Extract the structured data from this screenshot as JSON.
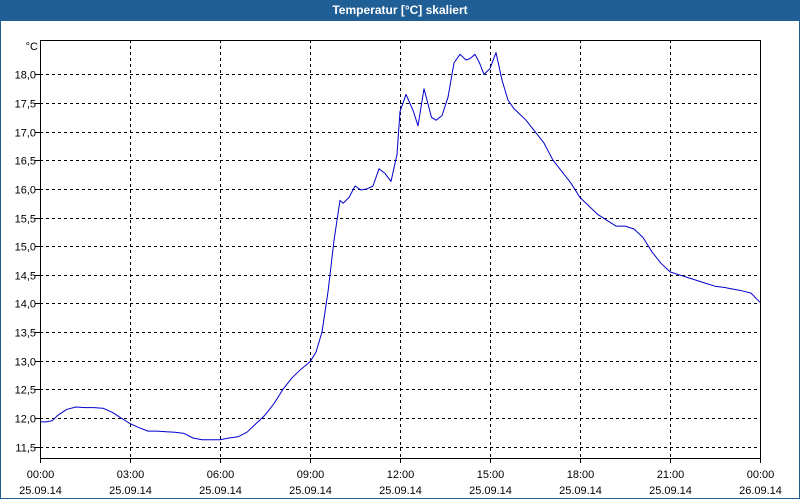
{
  "window": {
    "title": "Temperatur [°C] skaliert"
  },
  "colors": {
    "titlebar": "#1f5f95",
    "line": "#0000cc",
    "grid": "#000000",
    "background": "#ffffff"
  },
  "chart_data": {
    "type": "line",
    "title": "Temperatur [°C] skaliert",
    "unit_label": "°C",
    "xlabel": "",
    "ylabel": "",
    "grid": true,
    "legend": "none",
    "ylim": [
      11.3,
      18.6
    ],
    "xlim_hours": [
      0,
      24
    ],
    "y_ticks": [
      "11,5",
      "12,0",
      "12,5",
      "13,0",
      "13,5",
      "14,0",
      "14,5",
      "15,0",
      "15,5",
      "16,0",
      "16,5",
      "17,0",
      "17,5",
      "18,0"
    ],
    "x_ticks": [
      {
        "time": "00:00",
        "date": "25.09.14"
      },
      {
        "time": "03:00",
        "date": "25.09.14"
      },
      {
        "time": "06:00",
        "date": "25.09.14"
      },
      {
        "time": "09:00",
        "date": "25.09.14"
      },
      {
        "time": "12:00",
        "date": "25.09.14"
      },
      {
        "time": "15:00",
        "date": "25.09.14"
      },
      {
        "time": "18:00",
        "date": "25.09.14"
      },
      {
        "time": "21:00",
        "date": "25.09.14"
      },
      {
        "time": "00:00",
        "date": "26.09.14"
      }
    ],
    "series": [
      {
        "x": [
          0.0,
          0.2,
          0.4,
          0.6,
          0.9,
          1.2,
          1.5,
          1.8,
          2.1,
          2.4,
          2.7,
          3.0,
          3.3,
          3.6,
          3.9,
          4.2,
          4.5,
          4.8,
          5.1,
          5.4,
          5.7,
          6.0,
          6.3,
          6.6,
          6.9,
          7.2,
          7.5,
          7.8,
          8.1,
          8.4,
          8.7,
          9.0,
          9.2,
          9.4,
          9.6,
          9.8,
          10.0,
          10.1,
          10.3,
          10.5,
          10.7,
          10.9,
          11.1,
          11.3,
          11.5,
          11.7,
          11.9,
          12.0,
          12.2,
          12.45,
          12.6,
          12.8,
          13.05,
          13.2,
          13.4,
          13.6,
          13.8,
          14.0,
          14.2,
          14.35,
          14.5,
          14.65,
          14.8,
          15.0,
          15.2,
          15.4,
          15.6,
          15.8,
          16.0,
          16.2,
          16.5,
          16.8,
          17.1,
          17.4,
          17.7,
          18.0,
          18.3,
          18.6,
          18.9,
          19.2,
          19.5,
          19.8,
          20.1,
          20.4,
          20.7,
          21.0,
          21.3,
          21.6,
          21.9,
          22.2,
          22.5,
          22.8,
          23.1,
          23.4,
          23.7,
          24.0
        ],
        "y": [
          11.93,
          11.93,
          11.95,
          12.05,
          12.15,
          12.19,
          12.18,
          12.18,
          12.17,
          12.1,
          12.0,
          11.9,
          11.83,
          11.77,
          11.77,
          11.76,
          11.75,
          11.73,
          11.65,
          11.62,
          11.62,
          11.62,
          11.65,
          11.67,
          11.75,
          11.9,
          12.05,
          12.25,
          12.5,
          12.7,
          12.85,
          12.98,
          13.15,
          13.5,
          14.2,
          15.1,
          15.8,
          15.75,
          15.85,
          16.05,
          15.98,
          16.0,
          16.05,
          16.35,
          16.27,
          16.13,
          16.6,
          17.35,
          17.65,
          17.35,
          17.1,
          17.75,
          17.25,
          17.2,
          17.28,
          17.6,
          18.2,
          18.35,
          18.25,
          18.28,
          18.35,
          18.2,
          18.0,
          18.1,
          18.38,
          17.9,
          17.55,
          17.4,
          17.3,
          17.2,
          17.0,
          16.8,
          16.5,
          16.3,
          16.1,
          15.85,
          15.7,
          15.55,
          15.45,
          15.35,
          15.35,
          15.3,
          15.15,
          14.9,
          14.7,
          14.55,
          14.5,
          14.45,
          14.4,
          14.35,
          14.3,
          14.28,
          14.25,
          14.22,
          14.18,
          14.02
        ]
      }
    ]
  }
}
